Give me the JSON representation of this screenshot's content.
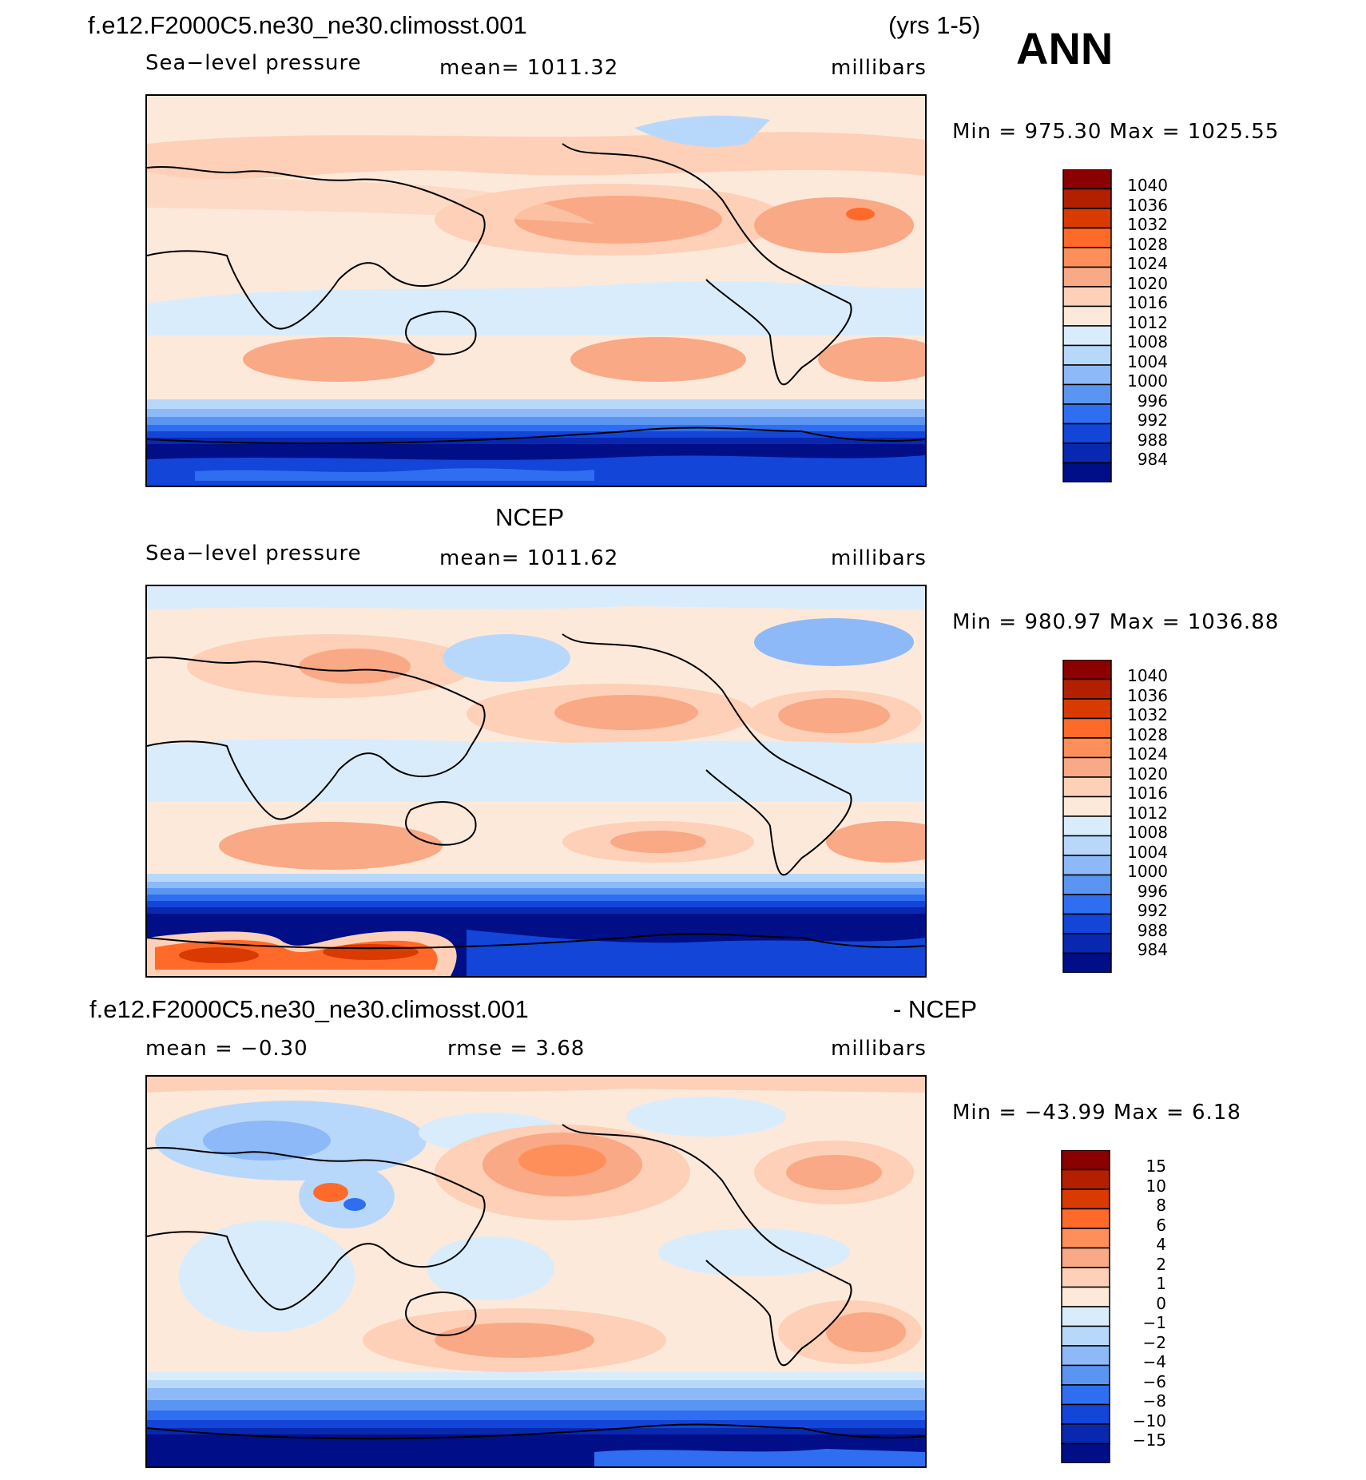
{
  "header": {
    "case_name": "f.e12.F2000C5.ne30_ne30.climosst.001",
    "years": "(yrs 1-5)",
    "season": "ANN"
  },
  "panels": [
    {
      "id": "model",
      "title": "",
      "variable": "Sea−level pressure",
      "stat1": "mean=  1011.32",
      "stat2": "",
      "units": "millibars",
      "minmax": "Min  =  975.30  Max  =  1025.55",
      "colorbar_labels": [
        "1040",
        "1036",
        "1032",
        "1028",
        "1024",
        "1020",
        "1016",
        "1012",
        "1008",
        "1004",
        "1000",
        "996",
        "992",
        "988",
        "984"
      ]
    },
    {
      "id": "obs",
      "title": "NCEP",
      "variable": "Sea−level pressure",
      "stat1": "mean=  1011.62",
      "stat2": "",
      "units": "millibars",
      "minmax": "Min  =  980.97  Max  =  1036.88",
      "colorbar_labels": [
        "1040",
        "1036",
        "1032",
        "1028",
        "1024",
        "1020",
        "1016",
        "1012",
        "1008",
        "1004",
        "1000",
        "996",
        "992",
        "988",
        "984"
      ]
    },
    {
      "id": "diff",
      "title_left": "f.e12.F2000C5.ne30_ne30.climosst.001",
      "title_right": "- NCEP",
      "stat1": "mean  =   −0.30",
      "stat2": "rmse  =      3.68",
      "units": "millibars",
      "minmax": "Min  =  −43.99  Max  =      6.18",
      "colorbar_labels": [
        "15",
        "10",
        "8",
        "6",
        "4",
        "2",
        "1",
        "0",
        "−1",
        "−2",
        "−4",
        "−6",
        "−8",
        "−10",
        "−15"
      ]
    }
  ],
  "colors": {
    "ramp": [
      "#8b0000",
      "#b22000",
      "#d83a00",
      "#ff6a2a",
      "#ff8f5a",
      "#f9a985",
      "#fdd0b7",
      "#fde9da",
      "#d9ecfc",
      "#b8d8fb",
      "#8db9f8",
      "#5a95f2",
      "#2f6ef0",
      "#1245d8",
      "#0828b0",
      "#000e88"
    ],
    "land_outline": "#000000"
  }
}
